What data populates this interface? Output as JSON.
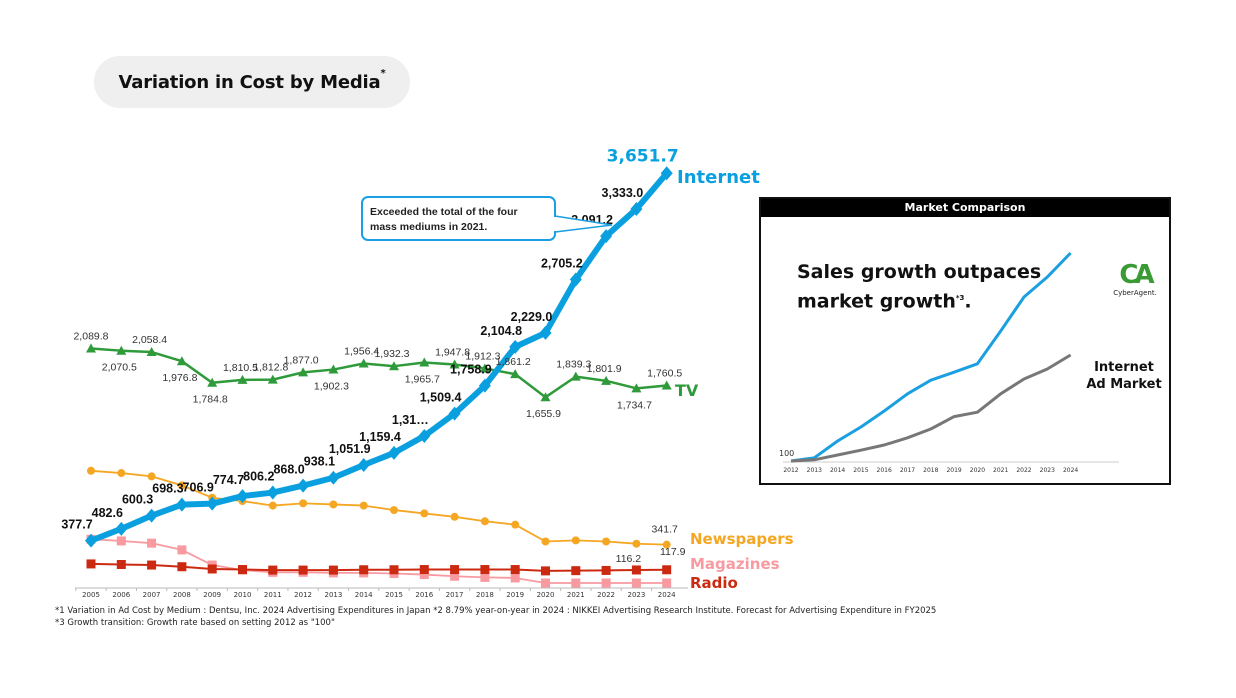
{
  "title": {
    "text": "Variation in Cost by Media",
    "superscript": "*"
  },
  "chart_data": [
    {
      "type": "line",
      "title": "Variation in Cost by Media",
      "xlabel": "",
      "ylabel": "",
      "grid": false,
      "categories": [
        "2005",
        "2006",
        "2007",
        "2008",
        "2009",
        "2010",
        "2011",
        "2012",
        "2013",
        "2014",
        "2015",
        "2016",
        "2017",
        "2018",
        "2019",
        "2020",
        "2021",
        "2022",
        "2023",
        "2024"
      ],
      "series": [
        {
          "name": "Internet",
          "color": "#0aa0e0",
          "marker": "diamond",
          "values": [
            377.7,
            482.6,
            600.3,
            698.3,
            706.9,
            774.7,
            806.2,
            868.0,
            938.1,
            1051.9,
            1159.4,
            1310.0,
            1509.4,
            1758.9,
            2104.8,
            2229.0,
            2705.2,
            3091.2,
            3333.0,
            3651.7
          ],
          "labels": [
            "377.7",
            "482.6",
            "600.3",
            "698.3",
            "706.9",
            "774.7",
            "806.2",
            "868.0",
            "938.1",
            "1,051.9",
            "1,159.4",
            "1,31…",
            "1,509.4",
            "1,758.9",
            "2,104.8",
            "2,229.0",
            "2,705.2",
            "3,091.2",
            "3,333.0",
            "3,651.7"
          ]
        },
        {
          "name": "TV",
          "color": "#2e9a3a",
          "marker": "triangle",
          "values": [
            2089.8,
            2070.5,
            2058.4,
            1976.8,
            1784.8,
            1810.5,
            1812.8,
            1877.0,
            1902.3,
            1956.4,
            1932.3,
            1965.7,
            1947.8,
            1912.3,
            1861.2,
            1655.9,
            1839.3,
            1801.9,
            1734.7,
            1760.5
          ],
          "labels": [
            "2,089.8",
            "2,070.5",
            "2,058.4",
            "1,976.8",
            "1,784.8",
            "1,810.5",
            "1,812.8",
            "1,877.0",
            "1,902.3",
            "1,956.4",
            "1,932.3",
            "1,965.7",
            "1,947.8",
            "1,912.3",
            "1,861.2",
            "1,655.9",
            "1,839.3",
            "1,801.9",
            "1,734.7",
            "1,760.5"
          ]
        },
        {
          "name": "Newspapers",
          "color": "#f5a623",
          "marker": "circle",
          "values": [
            1000,
            980,
            950,
            870,
            760,
            730,
            690,
            710,
            700,
            690,
            650,
            620,
            590,
            550,
            520,
            370,
            380,
            370,
            350,
            341.7
          ],
          "labels": [
            "",
            "",
            "",
            "",
            "",
            "",
            "",
            "",
            "",
            "",
            "",
            "",
            "",
            "",
            "",
            "",
            "",
            "",
            "",
            "341.7"
          ]
        },
        {
          "name": "Magazines",
          "color": "#f89aa0",
          "marker": "square",
          "values": [
            390,
            375,
            355,
            295,
            160,
            115,
            95,
            95,
            90,
            90,
            85,
            75,
            60,
            50,
            45,
            0,
            0,
            0,
            0,
            0
          ],
          "labels": [
            "",
            "",
            "",
            "",
            "",
            "",
            "",
            "",
            "",
            "",
            "",
            "",
            "",
            "",
            "",
            "",
            "",
            "",
            "",
            ""
          ]
        },
        {
          "name": "Radio",
          "color": "#cc2a10",
          "marker": "square",
          "values": [
            170,
            165,
            160,
            145,
            125,
            120,
            115,
            115,
            115,
            118,
            118,
            120,
            120,
            120,
            120,
            108,
            110,
            112,
            116.2,
            117.9
          ],
          "labels": [
            "",
            "",
            "",
            "",
            "",
            "",
            "",
            "",
            "",
            "",
            "",
            "",
            "",
            "",
            "",
            "",
            "",
            "",
            "116.2",
            "117.9"
          ]
        }
      ],
      "annotations": [
        {
          "text": "Exceeded the total of the four mass mediums in 2021.",
          "points_to": "2021"
        }
      ],
      "legend": "right"
    },
    {
      "type": "line",
      "title": "Market Comparison",
      "headline": "Sales growth outpaces market growth",
      "headline_note": "*3",
      "categories": [
        "2012",
        "2013",
        "2014",
        "2015",
        "2016",
        "2017",
        "2018",
        "2019",
        "2020",
        "2021",
        "2022",
        "2023",
        "2024"
      ],
      "baseline_label": "100",
      "series": [
        {
          "name": "CyberAgent",
          "color": "#1aa0e0",
          "values": [
            100,
            108,
            150,
            185,
            225,
            268,
            302,
            322,
            343,
            425,
            510,
            560,
            620
          ]
        },
        {
          "name": "Internet Ad Market",
          "color": "#777777",
          "values": [
            100,
            103,
            115,
            127,
            140,
            158,
            180,
            211,
            222,
            268,
            305,
            330,
            365
          ]
        }
      ],
      "labels": {
        "market": [
          "Internet",
          "Ad Market"
        ],
        "logo_mark": "CA",
        "logo_word": "CyberAgent."
      }
    }
  ],
  "footnotes": [
    "*1 Variation in Ad Cost by Medium : Dentsu, Inc. 2024 Advertising Expenditures in Japan  *2 8.79% year-on-year in 2024 : NIKKEI Advertising Research Institute. Forecast for Advertising Expenditure in FY2025",
    "*3 Growth transition: Growth rate based on setting 2012 as \"100\""
  ]
}
